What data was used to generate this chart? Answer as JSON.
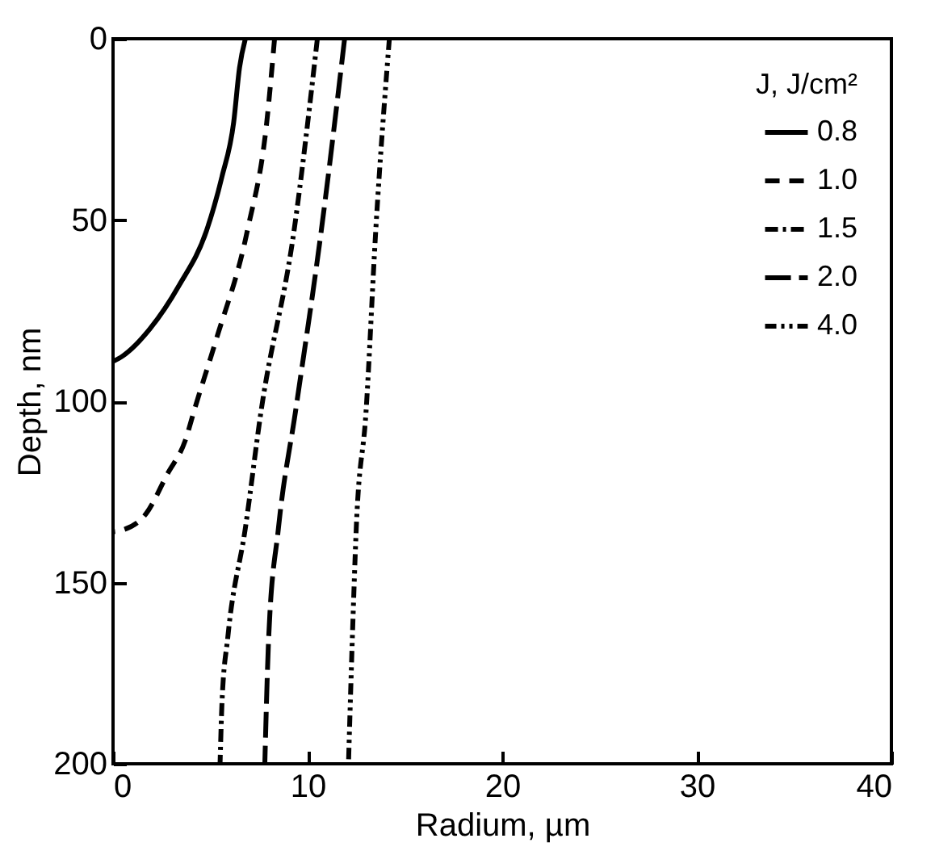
{
  "chart_data": {
    "type": "line",
    "xlabel": "Radium, µm",
    "ylabel": "Depth, nm",
    "legend_title": "J, J/cm²",
    "xlim": [
      0,
      40
    ],
    "xticks": [
      0,
      10,
      20,
      30,
      40
    ],
    "ylim": [
      200,
      0
    ],
    "yticks": [
      0,
      50,
      100,
      150,
      200
    ],
    "grid": false,
    "legend": "top right",
    "marker": "none",
    "series": [
      {
        "name": "0.8",
        "color": "#000000",
        "line_style": "solid",
        "x": [
          6.8,
          6.5,
          6.2,
          5.6,
          4.8,
          3.4,
          1.9,
          0.5,
          0
        ],
        "values": [
          0,
          8,
          23,
          38,
          53,
          68,
          80,
          87.5,
          89
        ]
      },
      {
        "name": "1.0",
        "color": "#000000",
        "line_style": "dashed",
        "x": [
          8.3,
          7.9,
          6.9,
          5.3,
          4.2,
          3.7,
          2.8,
          1.7,
          0.5,
          0
        ],
        "values": [
          0,
          23,
          53,
          83,
          102,
          111,
          120,
          131,
          135.5,
          136
        ]
      },
      {
        "name": "1.5",
        "color": "#000000",
        "line_style": "dashdot",
        "x": [
          10.5,
          9.3,
          7.6,
          6.8,
          5.9,
          5.6,
          5.5
        ],
        "values": [
          0,
          53,
          103,
          135,
          165,
          183,
          200
        ]
      },
      {
        "name": "2.0",
        "color": "#000000",
        "line_style": "longdash",
        "x": [
          11.9,
          10.7,
          9.4,
          8.5,
          8.0,
          7.8
        ],
        "values": [
          0,
          53,
          102,
          135,
          165,
          200
        ]
      },
      {
        "name": "4.0",
        "color": "#000000",
        "line_style": "dashdotdot",
        "x": [
          14.2,
          13.5,
          13.0,
          12.5,
          12.3,
          12.1
        ],
        "values": [
          0,
          53,
          103,
          135,
          165,
          200
        ]
      }
    ]
  }
}
